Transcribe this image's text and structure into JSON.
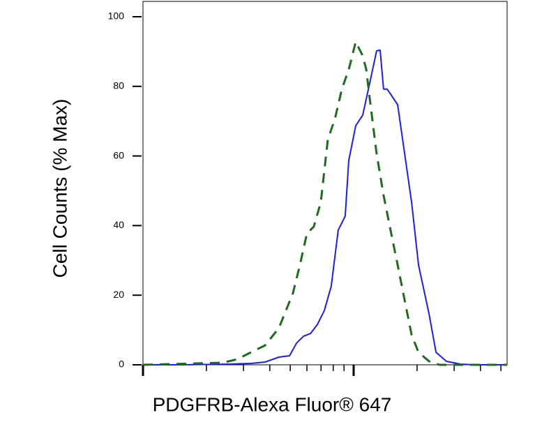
{
  "chart_data": {
    "type": "line",
    "y_label": "Cell Counts (% Max)",
    "x_label": "PDGFRB-Alexa Fluor® 647",
    "log_x": true,
    "xlim": [
      100,
      5350
    ],
    "xticks": [
      100,
      200,
      300,
      400,
      500,
      600,
      700,
      800,
      900,
      1000,
      2000,
      3000,
      4000,
      5000
    ],
    "ylim": [
      0,
      100
    ],
    "yticks": [
      0,
      20,
      40,
      60,
      80,
      100
    ],
    "series": [
      {
        "color": "#1a1aff",
        "dash": false,
        "x": [
          100,
          152,
          259,
          326,
          380,
          442,
          496,
          535,
          578,
          624,
          673,
          726,
          783,
          845,
          912,
          948,
          1023,
          1104,
          1191,
          1285,
          1336,
          1387,
          1442,
          1496,
          1618,
          1746,
          1884,
          2032,
          2280,
          2460,
          2754,
          3214,
          3741,
          5350
        ],
        "values": [
          0,
          0,
          0.2,
          0.4,
          0.8,
          2.2,
          2.6,
          6.2,
          8.2,
          9,
          11.6,
          15.6,
          22.6,
          38.7,
          42.7,
          58.7,
          68.7,
          71.7,
          80.8,
          90.2,
          90.4,
          79.2,
          79.2,
          77.8,
          74.7,
          60.7,
          46.7,
          28.7,
          14.6,
          3.6,
          1,
          0.2,
          0,
          0
        ]
      },
      {
        "color": "#1e6b1e",
        "dash": true,
        "x": [
          100,
          177,
          240,
          280,
          326,
          380,
          442,
          515,
          556,
          600,
          647,
          698,
          754,
          815,
          879,
          948,
          1023,
          1062,
          1104,
          1148,
          1191,
          1285,
          1387,
          1496,
          1618,
          1746,
          1884,
          2032,
          2280,
          2553,
          5350
        ],
        "values": [
          0,
          0.4,
          0.6,
          1.6,
          3.6,
          5.6,
          10.6,
          20.6,
          28.7,
          37.7,
          39.7,
          46.7,
          64.7,
          70.7,
          79.2,
          84.8,
          92.8,
          90.8,
          88.8,
          84.8,
          76.8,
          60.7,
          48.7,
          38.7,
          28.7,
          18.6,
          8.6,
          3.6,
          1,
          0,
          0
        ]
      }
    ]
  }
}
